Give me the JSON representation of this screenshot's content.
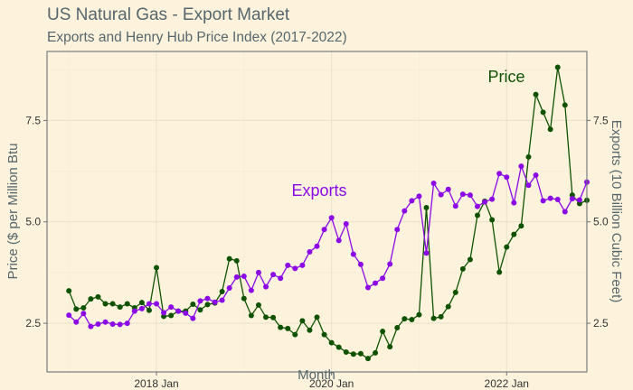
{
  "title": "US Natural Gas - Export Market",
  "subtitle": "Exports and Henry Hub Price Index (2017-2022)",
  "colors": {
    "background": "#fdf3dc",
    "price": "#0f5200",
    "exports": "#8c0ae6",
    "text": "#56666e"
  },
  "chart_data": {
    "type": "line",
    "title": "US Natural Gas - Export Market",
    "subtitle": "Exports and Henry Hub Price Index (2017-2022)",
    "xlabel": "Month",
    "ylabel_left": "Price ($ per Million Btu",
    "ylabel_right": "Exports (10 Billion Cubic Feet)",
    "x_tick_labels": [
      "2018 Jan",
      "2020 Jan",
      "2022 Jan"
    ],
    "x_tick_dates": [
      "2018-01",
      "2020-01",
      "2022-01"
    ],
    "y_left_ticks": [
      2.5,
      5.0,
      7.5
    ],
    "y_left_tick_labels": [
      "2.5",
      "5.0",
      "7.5"
    ],
    "y_right_ticks": [
      2.5,
      5.0,
      7.5
    ],
    "y_right_tick_labels": [
      "2.5",
      "5.0",
      "7.5"
    ],
    "xlim": [
      "2016-10",
      "2022-12"
    ],
    "ylim": [
      1.3,
      9.2
    ],
    "grid": true,
    "legend": "none",
    "months": [
      "2017-01",
      "2017-02",
      "2017-03",
      "2017-04",
      "2017-05",
      "2017-06",
      "2017-07",
      "2017-08",
      "2017-09",
      "2017-10",
      "2017-11",
      "2017-12",
      "2018-01",
      "2018-02",
      "2018-03",
      "2018-04",
      "2018-05",
      "2018-06",
      "2018-07",
      "2018-08",
      "2018-09",
      "2018-10",
      "2018-11",
      "2018-12",
      "2019-01",
      "2019-02",
      "2019-03",
      "2019-04",
      "2019-05",
      "2019-06",
      "2019-07",
      "2019-08",
      "2019-09",
      "2019-10",
      "2019-11",
      "2019-12",
      "2020-01",
      "2020-02",
      "2020-03",
      "2020-04",
      "2020-05",
      "2020-06",
      "2020-07",
      "2020-08",
      "2020-09",
      "2020-10",
      "2020-11",
      "2020-12",
      "2021-01",
      "2021-02",
      "2021-03",
      "2021-04",
      "2021-05",
      "2021-06",
      "2021-07",
      "2021-08",
      "2021-09",
      "2021-10",
      "2021-11",
      "2021-12",
      "2022-01",
      "2022-02",
      "2022-03",
      "2022-04",
      "2022-05",
      "2022-06",
      "2022-07",
      "2022-08",
      "2022-09",
      "2022-10",
      "2022-11",
      "2022-12"
    ],
    "series": [
      {
        "name": "Price",
        "color": "#0f5200",
        "values": [
          3.3,
          2.85,
          2.88,
          3.1,
          3.15,
          2.98,
          2.98,
          2.9,
          2.98,
          2.88,
          3.01,
          2.82,
          3.87,
          2.67,
          2.69,
          2.8,
          2.8,
          2.97,
          2.83,
          2.96,
          3.0,
          3.28,
          4.09,
          4.04,
          3.11,
          2.69,
          2.95,
          2.65,
          2.64,
          2.4,
          2.37,
          2.22,
          2.56,
          2.33,
          2.65,
          2.22,
          2.02,
          1.91,
          1.79,
          1.74,
          1.75,
          1.63,
          1.77,
          2.3,
          1.92,
          2.39,
          2.61,
          2.59,
          2.71,
          5.35,
          2.62,
          2.66,
          2.91,
          3.26,
          3.84,
          4.07,
          5.16,
          5.51,
          5.05,
          3.76,
          4.38,
          4.69,
          4.9,
          6.6,
          8.14,
          7.7,
          7.28,
          8.81,
          7.88,
          5.66,
          5.45,
          5.53
        ]
      },
      {
        "name": "Exports",
        "color": "#8c0ae6",
        "values": [
          2.7,
          2.53,
          2.74,
          2.42,
          2.48,
          2.53,
          2.48,
          2.47,
          2.5,
          2.8,
          2.86,
          2.98,
          2.98,
          2.76,
          2.9,
          2.8,
          2.75,
          2.62,
          3.05,
          3.11,
          3.02,
          3.07,
          3.37,
          3.64,
          3.66,
          3.31,
          3.75,
          3.4,
          3.7,
          3.61,
          3.93,
          3.85,
          3.93,
          4.26,
          4.4,
          4.81,
          5.1,
          4.54,
          4.95,
          4.2,
          3.95,
          3.38,
          3.49,
          3.61,
          3.96,
          4.81,
          5.27,
          5.52,
          5.63,
          4.23,
          5.95,
          5.67,
          5.8,
          5.39,
          5.68,
          5.66,
          5.38,
          5.49,
          5.56,
          6.19,
          6.1,
          5.47,
          6.37,
          5.9,
          6.15,
          5.52,
          5.58,
          5.55,
          5.25,
          5.57,
          5.54,
          5.98
        ]
      }
    ],
    "annotations": [
      {
        "text": "Exports",
        "series": "Exports"
      },
      {
        "text": "Price",
        "series": "Price"
      }
    ]
  }
}
